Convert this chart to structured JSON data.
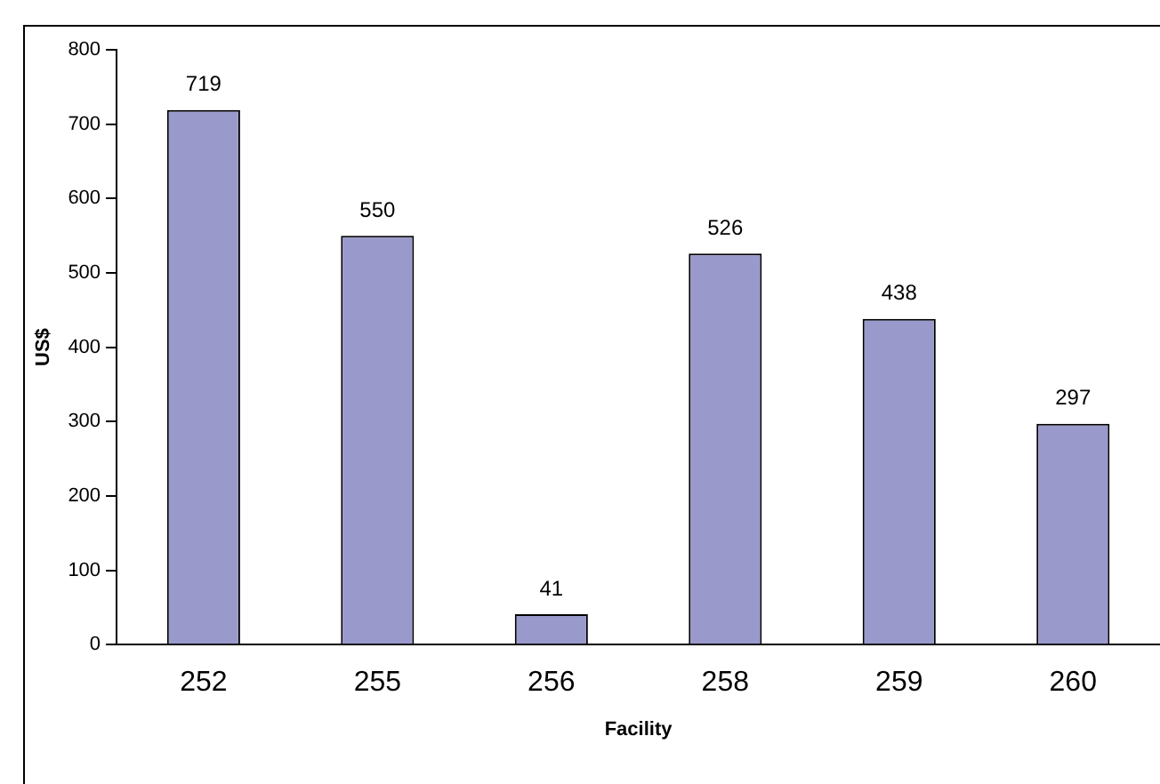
{
  "chart_data": {
    "type": "bar",
    "xlabel": "Facility",
    "ylabel": "US$",
    "categories": [
      "252",
      "255",
      "256",
      "258",
      "259",
      "260"
    ],
    "values": [
      719,
      550,
      41,
      526,
      438,
      297
    ],
    "color": "#9999cc",
    "ylim": [
      0,
      800
    ],
    "yticks": [
      0,
      100,
      200,
      300,
      400,
      500,
      600,
      700,
      800
    ],
    "grid": false,
    "legend": false,
    "data_labels": true
  }
}
